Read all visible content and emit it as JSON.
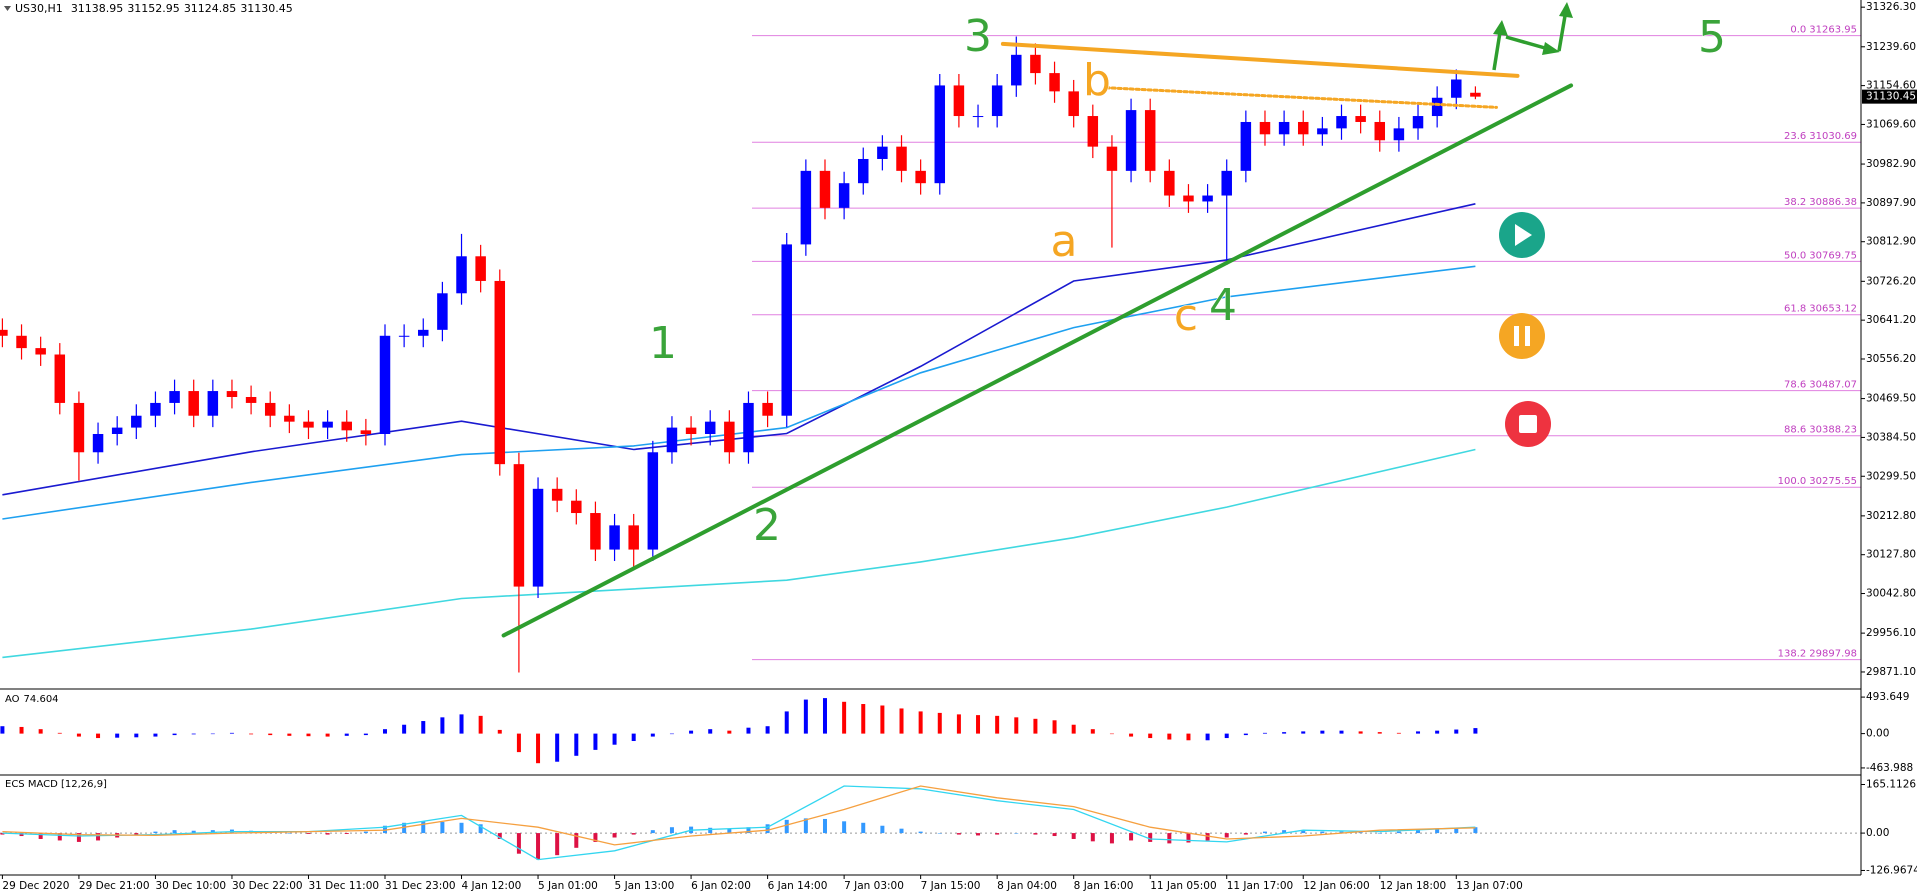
{
  "chart_data": {
    "type": "candlestick",
    "symbol": "US30,H1",
    "categories": [
      "29 Dec 2020",
      null,
      null,
      null,
      "29 Dec 21:00",
      null,
      null,
      null,
      "30 Dec 10:00",
      null,
      null,
      null,
      "30 Dec 22:00",
      null,
      null,
      null,
      "31 Dec 11:00",
      null,
      null,
      null,
      "31 Dec 23:00",
      null,
      null,
      null,
      "4 Jan 12:00",
      null,
      null,
      null,
      "5 Jan 01:00",
      null,
      null,
      null,
      "5 Jan 13:00",
      null,
      null,
      null,
      "6 Jan 02:00",
      null,
      null,
      null,
      "6 Jan 14:00",
      null,
      null,
      null,
      "7 Jan 03:00",
      null,
      null,
      null,
      "7 Jan 15:00",
      null,
      null,
      null,
      "8 Jan 04:00",
      null,
      null,
      null,
      "8 Jan 16:00",
      null,
      null,
      null,
      "11 Jan 05:00",
      null,
      null,
      null,
      "11 Jan 17:00",
      null,
      null,
      null,
      "12 Jan 06:00",
      null,
      null,
      null,
      "12 Jan 18:00",
      null,
      null,
      null,
      "13 Jan 07:00",
      null
    ],
    "open": [
      30620,
      30607,
      30580,
      30566,
      30460,
      30352,
      30392,
      30406,
      30432,
      30460,
      30486,
      30432,
      30486,
      30473,
      30460,
      30432,
      30419,
      30406,
      30419,
      30400,
      30392,
      30607,
      30607,
      30620,
      30700,
      30781,
      30727,
      30326,
      30058,
      30272,
      30246,
      30219,
      30139,
      30192,
      30139,
      30352,
      30406,
      30392,
      30419,
      30352,
      30460,
      30432,
      30807,
      30968,
      30887,
      30941,
      30994,
      31021,
      30968,
      30941,
      31155,
      31088,
      31088,
      31155,
      31222,
      31182,
      31142,
      31088,
      31021,
      30968,
      31101,
      30968,
      30914,
      30901,
      30914,
      30968,
      31075,
      31048,
      31075,
      31048,
      31061,
      31088,
      31075,
      31035,
      31061,
      31088,
      31128,
      31138.95
    ],
    "high": [
      30645,
      30632,
      30605,
      30591,
      30485,
      30417,
      30431,
      30457,
      30485,
      30511,
      30511,
      30511,
      30511,
      30498,
      30485,
      30457,
      30444,
      30444,
      30444,
      30425,
      30632,
      30632,
      30645,
      30725,
      30830,
      30806,
      30752,
      30351,
      30297,
      30297,
      30271,
      30244,
      30217,
      30217,
      30377,
      30431,
      30431,
      30444,
      30444,
      30485,
      30485,
      30832,
      30993,
      30993,
      30966,
      31019,
      31046,
      31046,
      30993,
      31180,
      31180,
      31113,
      31180,
      31262,
      31247,
      31207,
      31167,
      31113,
      31046,
      31126,
      31126,
      30993,
      30939,
      30939,
      30993,
      31100,
      31100,
      31100,
      31100,
      31086,
      31113,
      31113,
      31100,
      31086,
      31113,
      31153,
      31190,
      31152.95
    ],
    "low": [
      30582,
      30555,
      30541,
      30435,
      30290,
      30327,
      30367,
      30381,
      30407,
      30435,
      30407,
      30407,
      30448,
      30435,
      30407,
      30394,
      30381,
      30381,
      30375,
      30367,
      30367,
      30582,
      30582,
      30595,
      30675,
      30702,
      30301,
      29870,
      30033,
      30221,
      30194,
      30114,
      30114,
      30100,
      30114,
      30327,
      30367,
      30367,
      30327,
      30327,
      30407,
      30407,
      30782,
      30862,
      30862,
      30916,
      30969,
      30943,
      30916,
      30916,
      31063,
      31063,
      31063,
      31130,
      31157,
      31117,
      31063,
      30996,
      30800,
      30943,
      30943,
      30889,
      30876,
      30876,
      30762,
      30943,
      31023,
      31023,
      31023,
      31023,
      31036,
      31050,
      31010,
      31010,
      31036,
      31063,
      31103,
      31124.85
    ],
    "close": [
      30607,
      30580,
      30566,
      30460,
      30352,
      30392,
      30406,
      30432,
      30460,
      30486,
      30432,
      30486,
      30473,
      30460,
      30432,
      30419,
      30406,
      30419,
      30400,
      30392,
      30607,
      30607,
      30620,
      30700,
      30781,
      30727,
      30326,
      30058,
      30272,
      30246,
      30219,
      30139,
      30192,
      30139,
      30352,
      30406,
      30392,
      30419,
      30352,
      30460,
      30432,
      30807,
      30968,
      30887,
      30941,
      30994,
      31021,
      30968,
      30941,
      31155,
      31088,
      31088,
      31155,
      31222,
      31182,
      31142,
      31088,
      31021,
      30968,
      31101,
      30968,
      30914,
      30901,
      30914,
      30968,
      31075,
      31048,
      31075,
      31048,
      31061,
      31088,
      31075,
      31035,
      31061,
      31088,
      31128,
      31168,
      31130.45
    ],
    "up_color": "#0000ff",
    "down_color": "#ff0000",
    "ylim": [
      29836,
      31342
    ],
    "yticks": [
      {
        "value": 31326.3,
        "label": "31326.30"
      },
      {
        "value": 31239.6,
        "label": "31239.60"
      },
      {
        "value": 31154.6,
        "label": "31154.60"
      },
      {
        "value": 31069.6,
        "label": "31069.60"
      },
      {
        "value": 30982.9,
        "label": "30982.90"
      },
      {
        "value": 30897.9,
        "label": "30897.90"
      },
      {
        "value": 30812.9,
        "label": "30812.90"
      },
      {
        "value": 30726.2,
        "label": "30726.20"
      },
      {
        "value": 30641.2,
        "label": "30641.20"
      },
      {
        "value": 30556.2,
        "label": "30556.20"
      },
      {
        "value": 30469.5,
        "label": "30469.50"
      },
      {
        "value": 30384.5,
        "label": "30384.50"
      },
      {
        "value": 30299.5,
        "label": "30299.50"
      },
      {
        "value": 30212.8,
        "label": "30212.80"
      },
      {
        "value": 30127.8,
        "label": "30127.80"
      },
      {
        "value": 30042.8,
        "label": "30042.80"
      },
      {
        "value": 29956.1,
        "label": "29956.10"
      },
      {
        "value": 29871.1,
        "label": "29871.10"
      }
    ],
    "moving_averages": [
      {
        "color": "#1a1ad0",
        "x": [
          0,
          13,
          24,
          33,
          41,
          48,
          56,
          64,
          77
        ],
        "values": [
          30259,
          30353,
          30420,
          30358,
          30393,
          30540,
          30727,
          30773,
          30896
        ]
      },
      {
        "color": "#1ea0f0",
        "x": [
          0,
          13,
          24,
          33,
          41,
          48,
          56,
          64,
          77
        ],
        "values": [
          30206,
          30286,
          30347,
          30366,
          30406,
          30526,
          30625,
          30692,
          30759
        ]
      },
      {
        "color": "#40d8e0",
        "x": [
          0,
          13,
          24,
          33,
          41,
          48,
          56,
          64,
          77
        ],
        "values": [
          29903,
          29965,
          30032,
          30053,
          30072,
          30112,
          30165,
          30232,
          30358
        ]
      }
    ],
    "fib_color": "#e080e0",
    "fib_levels": [
      {
        "level": "0.0",
        "price": 31263.95
      },
      {
        "level": "23.6",
        "price": 31030.69
      },
      {
        "level": "38.2",
        "price": 30886.38
      },
      {
        "level": "50.0",
        "price": 30769.75
      },
      {
        "level": "61.8",
        "price": 30653.12
      },
      {
        "level": "78.6",
        "price": 30487.07
      },
      {
        "level": "88.6",
        "price": 30388.23
      },
      {
        "level": "100.0",
        "price": 30275.55
      },
      {
        "level": "138.2",
        "price": 29897.98
      }
    ],
    "trendlines": [
      {
        "color": "#2e9e2e",
        "style": "solid",
        "from": [
          26.2,
          29951
        ],
        "to": [
          82,
          31155
        ]
      },
      {
        "color": "#f5a623",
        "style": "solid",
        "from": [
          52.3,
          31246
        ],
        "to": [
          79.2,
          31176
        ]
      },
      {
        "color": "#f5a623",
        "style": "dotted",
        "from": [
          57.7,
          31150
        ],
        "to": [
          78.1,
          31107
        ]
      }
    ],
    "wave_labels": [
      {
        "text": "1",
        "color": "#3aa43a"
      },
      {
        "text": "2",
        "color": "#3aa43a"
      },
      {
        "text": "3",
        "color": "#3aa43a"
      },
      {
        "text": "4",
        "color": "#3aa43a"
      },
      {
        "text": "5",
        "color": "#3aa43a"
      },
      {
        "text": "a",
        "color": "#f5a623"
      },
      {
        "text": "b",
        "color": "#f5a623"
      },
      {
        "text": "c",
        "color": "#f5a623"
      }
    ],
    "ao": {
      "name": "AO",
      "up_color": "#0000ff",
      "down_color": "#ff0000",
      "values": [
        100,
        90,
        60,
        10,
        -40,
        -60,
        -55,
        -50,
        -40,
        -20,
        -10,
        0,
        10,
        -10,
        -20,
        -30,
        -35,
        -40,
        -30,
        -20,
        60,
        120,
        170,
        220,
        260,
        240,
        50,
        -250,
        -400,
        -380,
        -300,
        -220,
        -150,
        -100,
        -40,
        0,
        40,
        60,
        40,
        80,
        100,
        300,
        460,
        480,
        430,
        400,
        380,
        340,
        300,
        280,
        260,
        250,
        240,
        220,
        200,
        180,
        120,
        60,
        0,
        -40,
        -60,
        -80,
        -90,
        -90,
        -60,
        -20,
        10,
        20,
        30,
        40,
        40,
        30,
        20,
        10,
        30,
        40,
        55,
        74.604
      ],
      "ylim": [
        -546,
        576
      ],
      "yticks": [
        493.649,
        {
          "value": 0,
          "label": "0.00"
        },
        -463.988
      ]
    },
    "macd": {
      "name": "ECS MACD [12,26,9]",
      "pos_color": "#3399ff",
      "neg_color": "#dd1144",
      "histogram": [
        -5,
        -10,
        -20,
        -25,
        -30,
        -25,
        -15,
        -5,
        5,
        10,
        8,
        10,
        12,
        8,
        5,
        0,
        -3,
        -5,
        -3,
        5,
        25,
        35,
        40,
        38,
        35,
        30,
        -20,
        -70,
        -90,
        -75,
        -50,
        -30,
        -15,
        -5,
        10,
        20,
        22,
        18,
        15,
        20,
        30,
        45,
        50,
        48,
        40,
        35,
        25,
        15,
        5,
        0,
        -5,
        -8,
        -5,
        0,
        -5,
        -10,
        -20,
        -28,
        -35,
        -25,
        -30,
        -35,
        -32,
        -25,
        -15,
        -5,
        5,
        10,
        8,
        5,
        5,
        3,
        0,
        5,
        10,
        15,
        18,
        20
      ],
      "lines": [
        {
          "color": "#33d6f0",
          "x": [
            0,
            4,
            8,
            12,
            16,
            20,
            24,
            28,
            32,
            36,
            40,
            44,
            48,
            52,
            56,
            60,
            64,
            68,
            72,
            77
          ],
          "values": [
            0,
            -10,
            -5,
            5,
            5,
            20,
            60,
            -90,
            -60,
            10,
            20,
            160,
            150,
            110,
            80,
            -20,
            -30,
            10,
            5,
            20
          ]
        },
        {
          "color": "#f5a040",
          "x": [
            0,
            4,
            8,
            12,
            16,
            20,
            24,
            28,
            32,
            36,
            40,
            44,
            48,
            52,
            56,
            60,
            64,
            68,
            72,
            77
          ],
          "values": [
            5,
            -5,
            -8,
            0,
            5,
            10,
            50,
            20,
            -40,
            -10,
            10,
            80,
            160,
            120,
            90,
            20,
            -20,
            -10,
            10,
            18
          ]
        }
      ],
      "ylim": [
        -139,
        194
      ],
      "yticks": [
        165.1126,
        {
          "value": 0,
          "label": "0.00"
        },
        -126.9674
      ]
    }
  }
}
